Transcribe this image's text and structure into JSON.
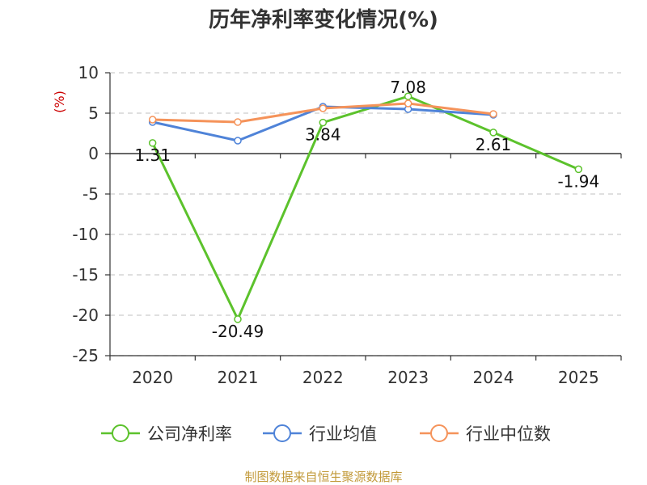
{
  "chart_data": {
    "type": "line",
    "title": "历年净利率变化情况(%)",
    "xlabel": "",
    "ylabel": "(%)",
    "categories": [
      "2020",
      "2021",
      "2022",
      "2023",
      "2024",
      "2025"
    ],
    "ylim": [
      -25,
      10
    ],
    "yticks": [
      10,
      5,
      0,
      -5,
      -10,
      -15,
      -20,
      -25
    ],
    "grid": true,
    "legend_position": "bottom",
    "series": [
      {
        "name": "公司净利率",
        "color": "#5cc22c",
        "values": [
          1.31,
          -20.49,
          3.84,
          7.08,
          2.61,
          -1.94
        ],
        "labels": [
          "1.31",
          "-20.49",
          "3.84",
          "7.08",
          "2.61",
          "-1.94"
        ]
      },
      {
        "name": "行业均值",
        "color": "#4f83d8",
        "values": [
          3.9,
          1.6,
          5.8,
          5.5,
          4.8,
          null
        ]
      },
      {
        "name": "行业中位数",
        "color": "#f5935a",
        "values": [
          4.2,
          3.9,
          5.6,
          6.2,
          4.9,
          null
        ]
      }
    ]
  },
  "source_note": "制图数据来自恒生聚源数据库"
}
